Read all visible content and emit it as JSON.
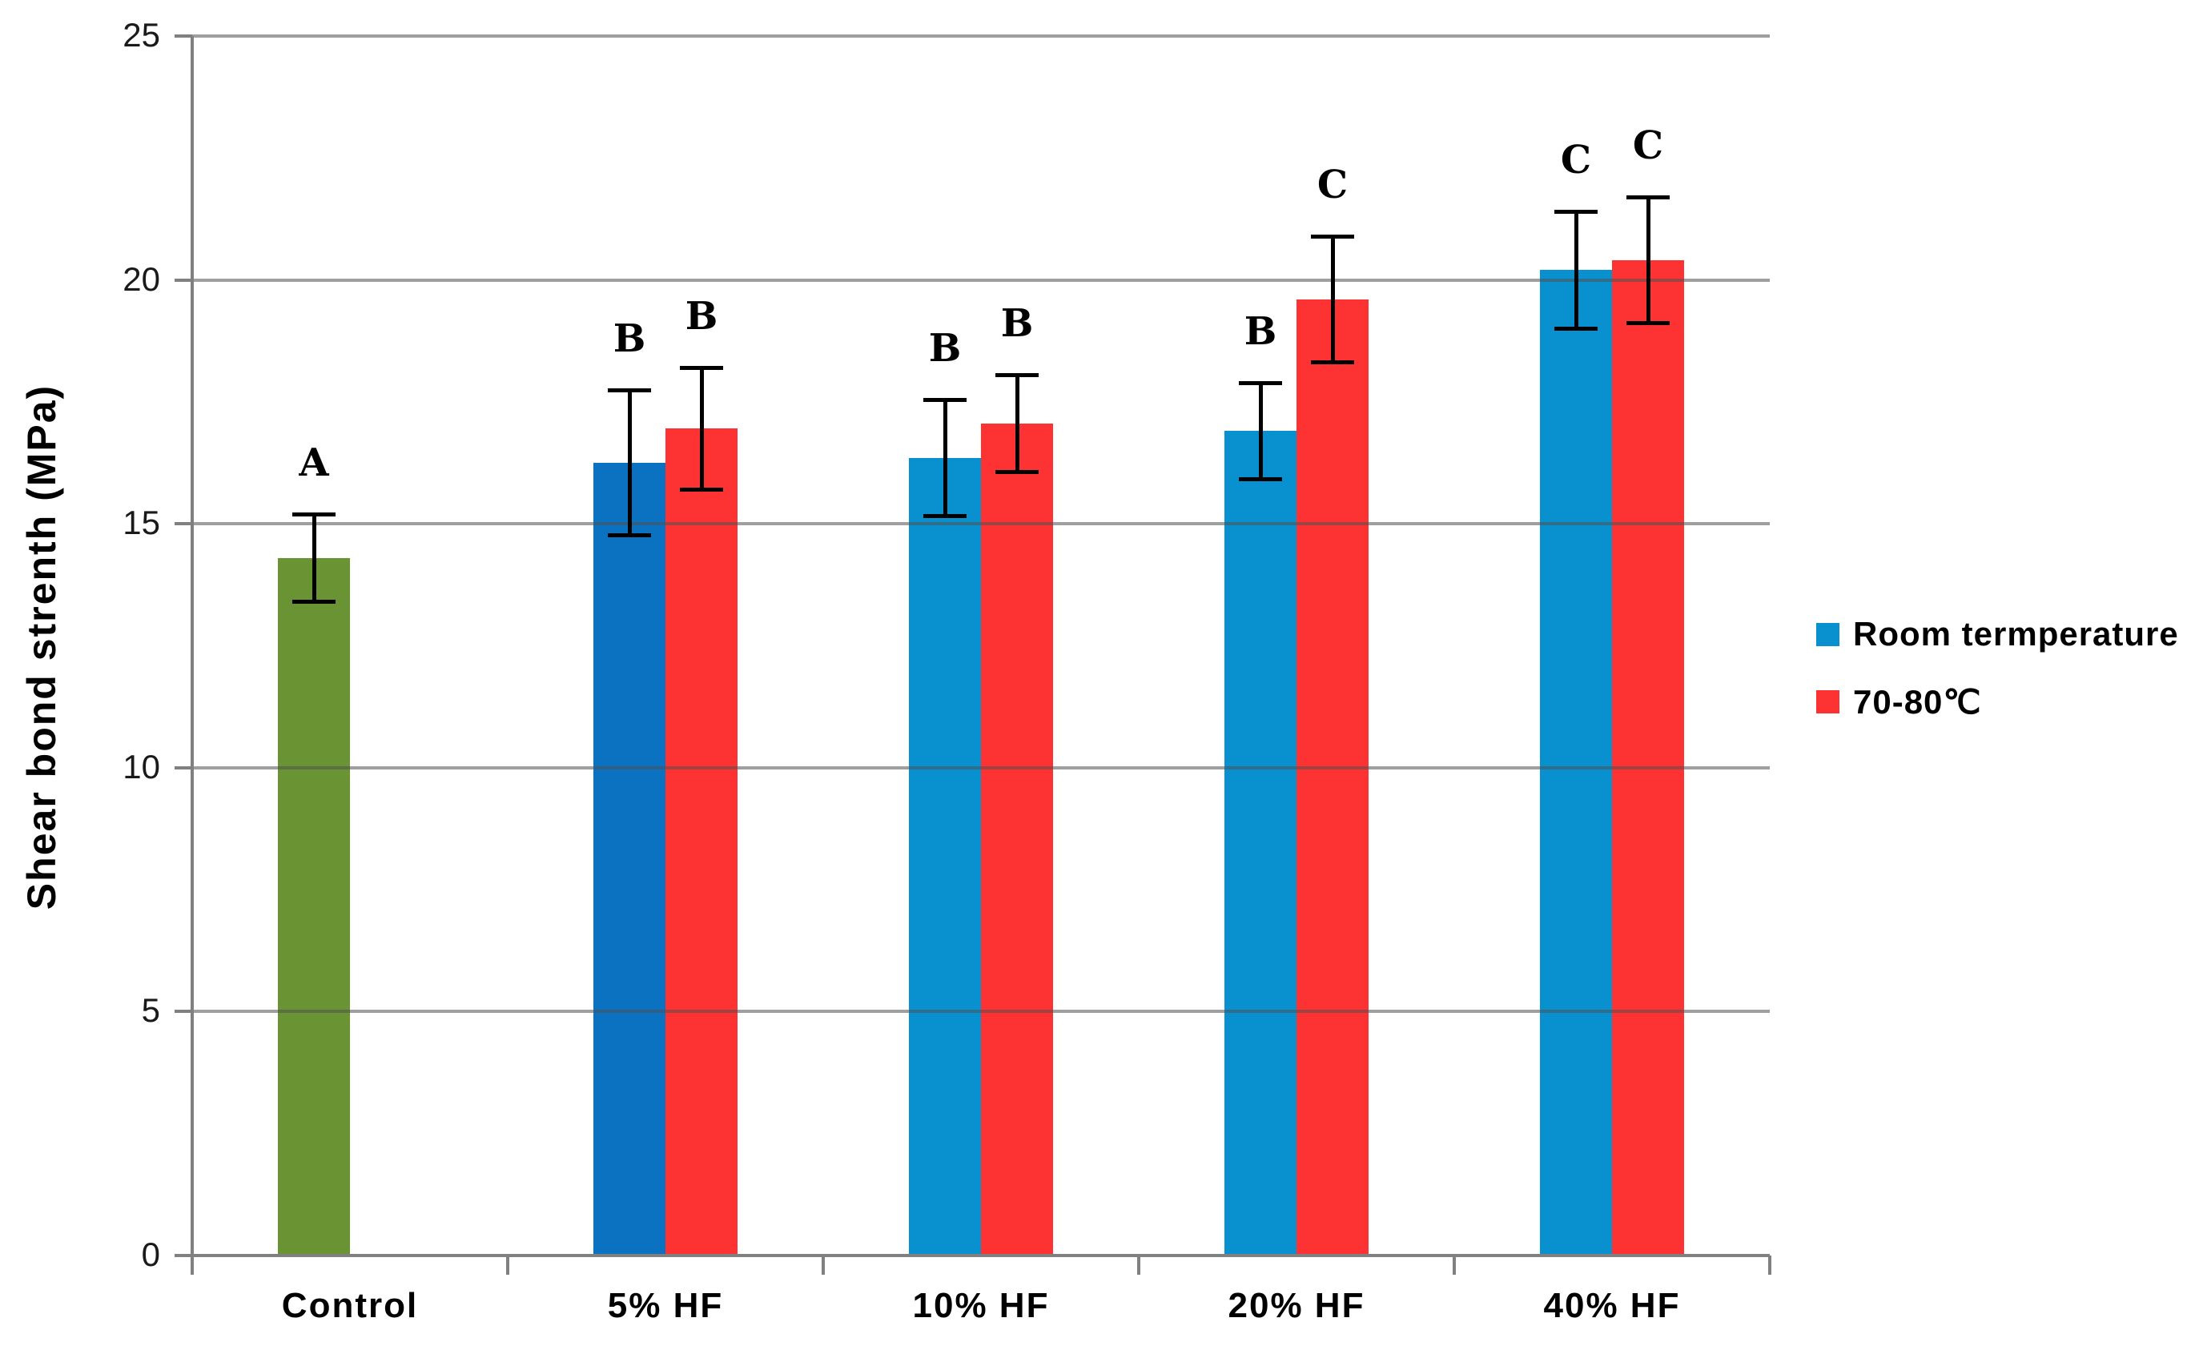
{
  "chart_data": {
    "type": "bar",
    "ylabel": "Shear bond strenth (MPa)",
    "categories": [
      "Control",
      "5% HF",
      "10% HF",
      "20% HF",
      "40% HF"
    ],
    "series": [
      {
        "name": "Room termperature",
        "values": [
          14.3,
          16.25,
          16.35,
          16.9,
          20.2
        ],
        "errors": [
          0.9,
          1.5,
          1.2,
          1.0,
          1.2
        ],
        "letters": [
          "A",
          "B",
          "B",
          "B",
          "C"
        ],
        "bar_colors": [
          "#6a9433",
          "#0b71c1",
          "#0990ce",
          "#0990ce",
          "#0990ce"
        ],
        "legend_color": "#0990ce"
      },
      {
        "name": "70-80℃",
        "values": [
          null,
          16.95,
          17.05,
          19.6,
          20.4
        ],
        "errors": [
          null,
          1.25,
          1.0,
          1.3,
          1.3
        ],
        "letters": [
          null,
          "B",
          "B",
          "C",
          "C"
        ],
        "bar_colors": [
          null,
          "#fd3333",
          "#fd3333",
          "#fd3333",
          "#fd3333"
        ],
        "legend_color": "#fd3333"
      }
    ],
    "ylim": [
      0,
      25
    ],
    "yticks": [
      0,
      5,
      10,
      15,
      20,
      25
    ],
    "grid": true,
    "legend_position": "right"
  },
  "colors": {
    "grid": "#a0a0a0",
    "axis": "#808080",
    "control_green": "#6a9433",
    "room_temp_blue_dark": "#0b71c1",
    "room_temp_blue": "#0990ce",
    "heated_red": "#fd3333"
  }
}
